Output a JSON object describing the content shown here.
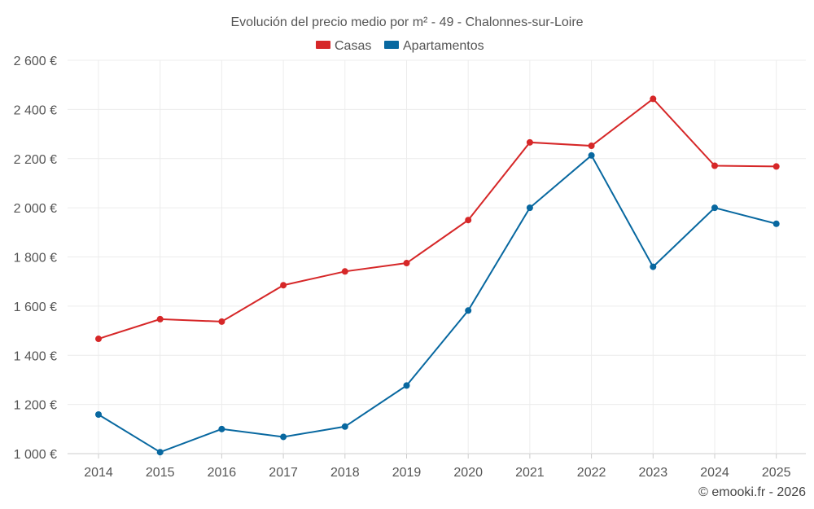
{
  "chart_data": {
    "type": "line",
    "title": "Evolución del precio medio por m² - 49 - Chalonnes-sur-Loire",
    "xlabel": "",
    "ylabel": "",
    "categories": [
      "2014",
      "2015",
      "2016",
      "2017",
      "2018",
      "2019",
      "2020",
      "2021",
      "2022",
      "2023",
      "2024",
      "2025"
    ],
    "ylim": [
      1000,
      2600
    ],
    "yticks": [
      1000,
      1200,
      1400,
      1600,
      1800,
      2000,
      2200,
      2400,
      2600
    ],
    "ytick_labels": [
      "1 000 €",
      "1 200 €",
      "1 400 €",
      "1 600 €",
      "1 800 €",
      "2 000 €",
      "2 200 €",
      "2 400 €",
      "2 600 €"
    ],
    "grid": true,
    "legend_position": "top-center",
    "series": [
      {
        "name": "Casas",
        "color": "#d62728",
        "values": [
          1467,
          1547,
          1537,
          1685,
          1741,
          1775,
          1950,
          2266,
          2252,
          2443,
          2171,
          2168
        ]
      },
      {
        "name": "Apartamentos",
        "color": "#0868a0",
        "values": [
          1159,
          1006,
          1100,
          1068,
          1110,
          1277,
          1582,
          2000,
          2213,
          1760,
          2000,
          1935
        ]
      }
    ]
  },
  "credit": "© emooki.fr - 2026"
}
